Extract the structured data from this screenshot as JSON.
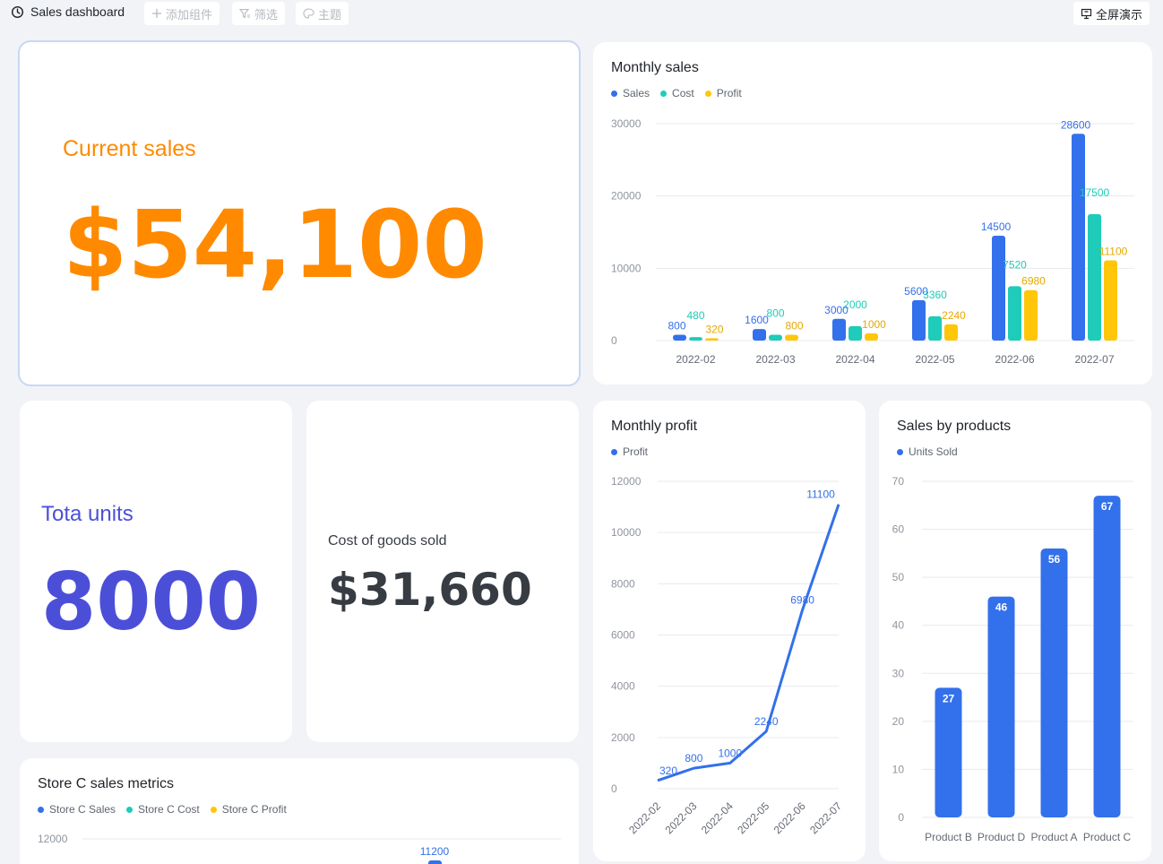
{
  "topbar": {
    "title": "Sales dashboard",
    "add_widget": "添加组件",
    "filter": "筛选",
    "theme": "主题",
    "fullscreen": "全屏演示"
  },
  "colors": {
    "orange": "#ff8a00",
    "indigo": "#4b4fd8",
    "blue": "#3370eb",
    "teal": "#1fcbb9",
    "yellow": "#ffc60a",
    "dark": "#373c43"
  },
  "current_sales": {
    "label": "Current sales",
    "value": "$54,100"
  },
  "total_units": {
    "label": "Tota units",
    "value": "8000"
  },
  "cogs": {
    "label": "Cost of goods sold",
    "value": "$31,660"
  },
  "monthly_sales": {
    "title": "Monthly sales",
    "legend": [
      "Sales",
      "Cost",
      "Profit"
    ]
  },
  "monthly_profit": {
    "title": "Monthly profit",
    "legend": [
      "Profit"
    ]
  },
  "sales_by_products": {
    "title": "Sales by products",
    "legend": [
      "Units Sold"
    ]
  },
  "store_c": {
    "title": "Store C sales metrics",
    "legend": [
      "Store C Sales",
      "Store C Cost",
      "Store C Profit"
    ]
  },
  "chart_data": [
    {
      "id": "monthly_sales",
      "type": "bar",
      "title": "Monthly sales",
      "categories": [
        "2022-02",
        "2022-03",
        "2022-04",
        "2022-05",
        "2022-06",
        "2022-07"
      ],
      "series": [
        {
          "name": "Sales",
          "color": "#3370eb",
          "values": [
            800,
            1600,
            3000,
            5600,
            14500,
            28600
          ]
        },
        {
          "name": "Cost",
          "color": "#1fcbb9",
          "values": [
            480,
            800,
            2000,
            3360,
            7520,
            17500
          ]
        },
        {
          "name": "Profit",
          "color": "#ffc60a",
          "values": [
            320,
            800,
            1000,
            2240,
            6980,
            11100
          ]
        }
      ],
      "ylim": [
        0,
        30000
      ],
      "yticks": [
        0,
        10000,
        20000,
        30000
      ],
      "grid": true,
      "legend": "top-left"
    },
    {
      "id": "monthly_profit",
      "type": "line",
      "title": "Monthly profit",
      "categories": [
        "2022-02",
        "2022-03",
        "2022-04",
        "2022-05",
        "2022-06",
        "2022-07"
      ],
      "series": [
        {
          "name": "Profit",
          "color": "#3370eb",
          "values": [
            320,
            800,
            1000,
            2240,
            6980,
            11100
          ]
        }
      ],
      "ylim": [
        0,
        12000
      ],
      "yticks": [
        0,
        2000,
        4000,
        6000,
        8000,
        10000,
        12000
      ],
      "grid": true,
      "legend": "top-left"
    },
    {
      "id": "sales_by_products",
      "type": "bar",
      "title": "Sales by products",
      "categories": [
        "Product B",
        "Product D",
        "Product A",
        "Product C"
      ],
      "series": [
        {
          "name": "Units Sold",
          "color": "#3370eb",
          "values": [
            27,
            46,
            56,
            67
          ]
        }
      ],
      "ylim": [
        0,
        70
      ],
      "yticks": [
        0,
        10,
        20,
        30,
        40,
        50,
        60,
        70
      ],
      "grid": true,
      "legend": "top-left"
    },
    {
      "id": "store_c",
      "type": "bar",
      "title": "Store C sales metrics",
      "series": [
        {
          "name": "Store C Sales",
          "color": "#3370eb"
        },
        {
          "name": "Store C Cost",
          "color": "#1fcbb9"
        },
        {
          "name": "Store C Profit",
          "color": "#ffc60a"
        }
      ],
      "yticks": [
        12000
      ],
      "visible_labels": [
        11200
      ],
      "grid": true,
      "legend": "top-left"
    }
  ]
}
